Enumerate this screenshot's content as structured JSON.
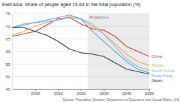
{
  "chart_data": {
    "type": "line",
    "title": "East Asia: Share of people aged 15-64 in the total population (%)",
    "source": "Source: Population Division, Department of Economic and Social Affairs, UN",
    "x": [
      1990,
      1995,
      2000,
      2005,
      2010,
      2015,
      2020,
      2025,
      2030,
      2035,
      2040,
      2045,
      2050
    ],
    "series": [
      {
        "name": "China",
        "color": "#c8283a",
        "values": [
          66,
          67,
          68,
          70.5,
          73,
          73.5,
          71,
          69,
          68.5,
          66,
          62,
          60,
          58
        ]
      },
      {
        "name": "Taiwan",
        "color": "#eba53a",
        "values": [
          66.5,
          68,
          70,
          71.5,
          72.5,
          74,
          73,
          70,
          67,
          63,
          59,
          56,
          54.5
        ]
      },
      {
        "name": "South Korea",
        "color": "#8cb4dc",
        "values": [
          69.5,
          71,
          71.5,
          72,
          72.5,
          73.5,
          73,
          71,
          67,
          62,
          57,
          54,
          52.5
        ]
      },
      {
        "name": "Hong Kong",
        "color": "#3fa9e0",
        "values": [
          69.5,
          70.5,
          71.5,
          72.5,
          73.5,
          74.5,
          73,
          68,
          64,
          60,
          56,
          53,
          51.5
        ]
      },
      {
        "name": "Japan",
        "color": "#14325c",
        "values": [
          69.5,
          69.5,
          68,
          66.5,
          64,
          61,
          59.5,
          59,
          58,
          55.5,
          53,
          52,
          51
        ]
      }
    ],
    "annotations": [
      {
        "text": "Projections",
        "x0": 2023,
        "x1": 2050
      }
    ],
    "xlim": [
      1990,
      2050
    ],
    "xticks": [
      2000,
      2010,
      2020,
      2030,
      2040,
      2050
    ],
    "ylim": [
      45,
      75
    ],
    "yticks": [
      45,
      50,
      55,
      60,
      65,
      70,
      75
    ],
    "grid": true
  }
}
